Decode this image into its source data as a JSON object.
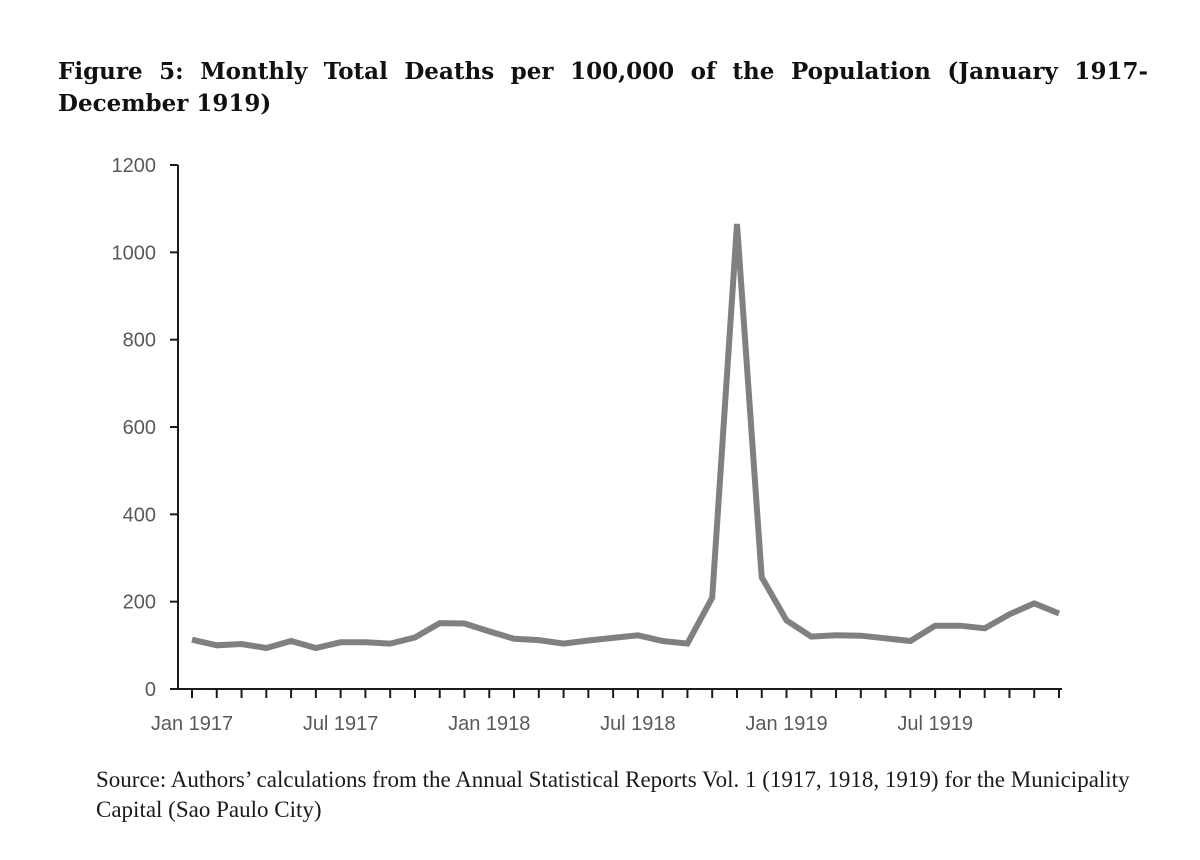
{
  "figure": {
    "title": "Figure 5:  Monthly Total Deaths per 100,000 of the Population (January 1917- December 1919)",
    "source": "Source: Authors’ calculations from the Annual Statistical Reports Vol. 1 (1917, 1918, 1919) for the Municipality Capital (Sao Paulo City)"
  },
  "chart_data": {
    "type": "line",
    "title": "",
    "xlabel": "",
    "ylabel": "",
    "ylim": [
      0,
      1200
    ],
    "y_ticks": [
      0,
      200,
      400,
      600,
      800,
      1000,
      1200
    ],
    "grid": false,
    "legend": "none",
    "line_color": "#808080",
    "x": [
      "Jan 1917",
      "Feb 1917",
      "Mar 1917",
      "Apr 1917",
      "May 1917",
      "Jun 1917",
      "Jul 1917",
      "Aug 1917",
      "Sep 1917",
      "Oct 1917",
      "Nov 1917",
      "Dec 1917",
      "Jan 1918",
      "Feb 1918",
      "Mar 1918",
      "Apr 1918",
      "May 1918",
      "Jun 1918",
      "Jul 1918",
      "Aug 1918",
      "Sep 1918",
      "Oct 1918",
      "Nov 1918",
      "Dec 1918",
      "Jan 1919",
      "Feb 1919",
      "Mar 1919",
      "Apr 1919",
      "May 1919",
      "Jun 1919",
      "Jul 1919",
      "Aug 1919",
      "Sep 1919",
      "Oct 1919",
      "Nov 1919",
      "Dec 1919"
    ],
    "x_tick_labels": [
      {
        "index": 0,
        "label": "Jan 1917"
      },
      {
        "index": 6,
        "label": "Jul 1917"
      },
      {
        "index": 12,
        "label": "Jan 1918"
      },
      {
        "index": 18,
        "label": "Jul 1918"
      },
      {
        "index": 24,
        "label": "Jan 1919"
      },
      {
        "index": 30,
        "label": "Jul 1919"
      }
    ],
    "series": [
      {
        "values": [
          113,
          100,
          103,
          94,
          110,
          94,
          107,
          107,
          104,
          118,
          151,
          150,
          132,
          115,
          112,
          104,
          111,
          117,
          123,
          110,
          104,
          209,
          1065,
          256,
          157,
          120,
          123,
          122,
          116,
          110,
          145,
          145,
          139,
          171,
          196,
          173
        ]
      }
    ]
  }
}
